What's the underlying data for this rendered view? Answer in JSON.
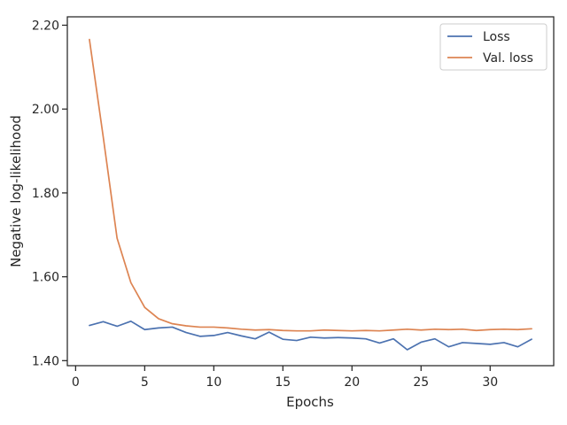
{
  "chart_data": {
    "type": "line",
    "title": "",
    "xlabel": "Epochs",
    "ylabel": "Negative log-likelihood",
    "xlim": [
      -0.6,
      34.6
    ],
    "ylim": [
      1.388,
      2.22
    ],
    "xticks": [
      0,
      5,
      10,
      15,
      20,
      25,
      30
    ],
    "yticks": [
      1.4,
      1.6,
      1.8,
      2.0,
      2.2
    ],
    "ytick_labels": [
      "1.40",
      "1.60",
      "1.80",
      "2.00",
      "2.20"
    ],
    "grid": false,
    "legend": "top-right",
    "x": [
      1,
      2,
      3,
      4,
      5,
      6,
      7,
      8,
      9,
      10,
      11,
      12,
      13,
      14,
      15,
      16,
      17,
      18,
      19,
      20,
      21,
      22,
      23,
      24,
      25,
      26,
      27,
      28,
      29,
      30,
      31,
      32,
      33
    ],
    "series": [
      {
        "name": "Loss",
        "color": "#4c72b0",
        "values": [
          1.484,
          1.493,
          1.482,
          1.494,
          1.474,
          1.478,
          1.48,
          1.467,
          1.458,
          1.46,
          1.467,
          1.459,
          1.452,
          1.468,
          1.451,
          1.448,
          1.456,
          1.454,
          1.455,
          1.454,
          1.452,
          1.442,
          1.452,
          1.426,
          1.444,
          1.452,
          1.433,
          1.443,
          1.441,
          1.439,
          1.443,
          1.433,
          1.451
        ]
      },
      {
        "name": "Val. loss",
        "color": "#dd8452",
        "values": [
          2.166,
          1.933,
          1.692,
          1.586,
          1.527,
          1.5,
          1.488,
          1.483,
          1.48,
          1.48,
          1.478,
          1.475,
          1.473,
          1.474,
          1.472,
          1.471,
          1.471,
          1.473,
          1.472,
          1.471,
          1.472,
          1.471,
          1.473,
          1.475,
          1.473,
          1.475,
          1.474,
          1.475,
          1.472,
          1.474,
          1.475,
          1.474,
          1.476
        ]
      }
    ]
  }
}
